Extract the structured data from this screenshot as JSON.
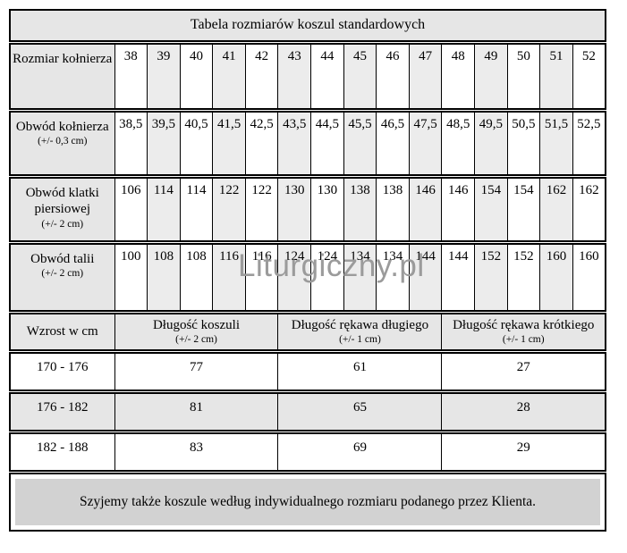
{
  "title": "Tabela rozmiarów koszul standardowych",
  "watermark": "Liturgiczny.pl",
  "sizes": {
    "rows": [
      {
        "label": "Rozmiar kołnierza",
        "note": "",
        "values": [
          "38",
          "39",
          "40",
          "41",
          "42",
          "43",
          "44",
          "45",
          "46",
          "47",
          "48",
          "49",
          "50",
          "51",
          "52"
        ]
      },
      {
        "label": "Obwód kołnierza",
        "note": "(+/- 0,3 cm)",
        "values": [
          "38,5",
          "39,5",
          "40,5",
          "41,5",
          "42,5",
          "43,5",
          "44,5",
          "45,5",
          "46,5",
          "47,5",
          "48,5",
          "49,5",
          "50,5",
          "51,5",
          "52,5"
        ]
      },
      {
        "label": "Obwód klatki piersiowej",
        "note": "(+/- 2 cm)",
        "values": [
          "106",
          "114",
          "114",
          "122",
          "122",
          "130",
          "130",
          "138",
          "138",
          "146",
          "146",
          "154",
          "154",
          "162",
          "162"
        ]
      },
      {
        "label": "Obwód talii",
        "note": "(+/- 2 cm)",
        "values": [
          "100",
          "108",
          "108",
          "116",
          "116",
          "124",
          "124",
          "134",
          "134",
          "144",
          "144",
          "152",
          "152",
          "160",
          "160"
        ]
      }
    ]
  },
  "lengths": {
    "headers": [
      {
        "label": "Wzrost w cm",
        "note": ""
      },
      {
        "label": "Długość koszuli",
        "note": "(+/- 2 cm)"
      },
      {
        "label": "Długość rękawa długiego",
        "note": "(+/- 1 cm)"
      },
      {
        "label": "Długość rękawa krótkiego",
        "note": "(+/- 1 cm)"
      }
    ],
    "rows": [
      {
        "range": "170 - 176",
        "values": [
          "77",
          "61",
          "27"
        ]
      },
      {
        "range": "176 - 182",
        "values": [
          "81",
          "65",
          "28"
        ]
      },
      {
        "range": "182 - 188",
        "values": [
          "83",
          "69",
          "29"
        ]
      }
    ]
  },
  "footer": "Szyjemy także koszule według indywidualnego rozmiaru podanego przez Klienta.",
  "colors": {
    "cell_gray": "#e6e6e6",
    "column_stripe": "#ececec",
    "footer_box": "#d2d2d2",
    "watermark_gray": "#9b9b9b",
    "border": "#000000"
  }
}
